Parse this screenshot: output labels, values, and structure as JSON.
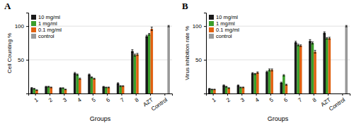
{
  "chart_data": [
    {
      "type": "bar",
      "title": "A",
      "xlabel": "Groups",
      "ylabel": "Cell Counting %",
      "categories": [
        "1",
        "2",
        "3",
        "4",
        "5",
        "6",
        "7",
        "8",
        "AZT",
        "Control"
      ],
      "series": [
        {
          "name": "10 mg/ml",
          "color": "#1a1a1a",
          "values": [
            8,
            10,
            8,
            30,
            28,
            10,
            15,
            63,
            85,
            null
          ],
          "errors": [
            0.8,
            0.6,
            0.5,
            1.2,
            1.0,
            0.5,
            0.8,
            2.0,
            1.5,
            null
          ]
        },
        {
          "name": "1 mg/ml",
          "color": "#3a9e2a",
          "values": [
            7,
            10,
            8,
            28,
            24,
            9,
            11,
            57,
            88,
            null
          ],
          "errors": [
            0.5,
            0.6,
            0.5,
            1.0,
            0.8,
            0.4,
            0.6,
            1.5,
            1.2,
            null
          ]
        },
        {
          "name": "0.1 mg/ml",
          "color": "#e06010",
          "values": [
            5,
            9,
            6,
            22,
            22,
            9,
            11,
            58,
            96,
            null
          ],
          "errors": [
            0.4,
            0.5,
            0.4,
            0.9,
            0.7,
            0.5,
            0.5,
            1.5,
            2.5,
            null
          ]
        },
        {
          "name": "control",
          "color": "#999999",
          "values": [
            null,
            null,
            null,
            null,
            null,
            null,
            null,
            null,
            null,
            100
          ],
          "errors": [
            null,
            null,
            null,
            null,
            null,
            null,
            null,
            null,
            null,
            1.0
          ]
        }
      ],
      "ylim": [
        0,
        120
      ],
      "yticks": [
        50,
        100
      ],
      "grid": true,
      "legend": "upper left"
    },
    {
      "type": "bar",
      "title": "B",
      "xlabel": "Groups",
      "ylabel": "Virus inhibition rate %",
      "categories": [
        "1",
        "2",
        "3",
        "4",
        "5",
        "6",
        "7",
        "8",
        "AZT",
        "Control"
      ],
      "series": [
        {
          "name": "10 mg/ml",
          "color": "#1a1a1a",
          "values": [
            7,
            12,
            12,
            30,
            32,
            16,
            76,
            78,
            90,
            null
          ],
          "errors": [
            0.5,
            0.7,
            0.6,
            1.0,
            1.2,
            0.8,
            1.5,
            2.0,
            1.5,
            null
          ]
        },
        {
          "name": "1 mg/ml",
          "color": "#3a9e2a",
          "values": [
            6,
            10,
            9,
            29,
            35,
            27,
            72,
            75,
            82,
            null
          ],
          "errors": [
            0.4,
            0.6,
            0.5,
            0.9,
            1.5,
            1.0,
            1.2,
            1.5,
            1.2,
            null
          ]
        },
        {
          "name": "0.1 mg/ml",
          "color": "#e06010",
          "values": [
            6,
            8,
            9,
            31,
            35,
            13,
            71,
            62,
            82,
            null
          ],
          "errors": [
            0.4,
            0.5,
            0.5,
            1.1,
            1.5,
            0.7,
            1.2,
            2.0,
            1.5,
            null
          ]
        },
        {
          "name": "control",
          "color": "#999999",
          "values": [
            null,
            null,
            null,
            null,
            null,
            null,
            null,
            null,
            null,
            100
          ],
          "errors": [
            null,
            null,
            null,
            null,
            null,
            null,
            null,
            null,
            null,
            1.0
          ]
        }
      ],
      "ylim": [
        0,
        120
      ],
      "yticks": [
        50,
        100
      ],
      "grid": true,
      "legend": "upper left"
    }
  ]
}
